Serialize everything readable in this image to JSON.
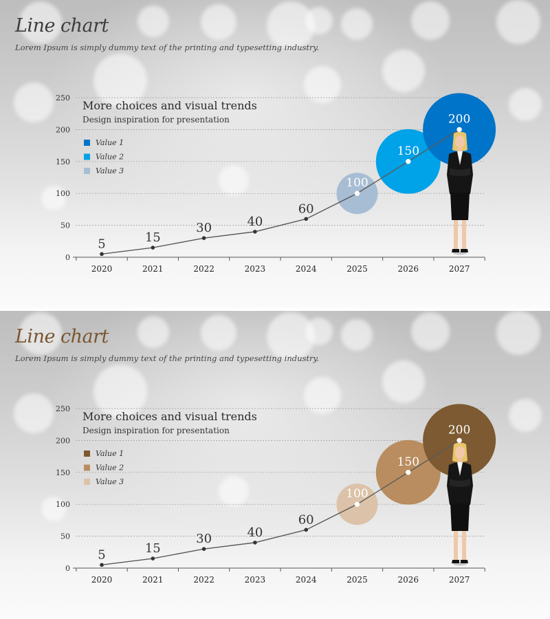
{
  "slides": [
    {
      "title": "Line chart",
      "subtitle": "Lorem Ipsum is simply dummy text of the printing and typesetting industry.",
      "colors": {
        "title": "#3d3d3d",
        "bubbles": [
          "#a7bdd3",
          "#00a2e8",
          "#0074c8"
        ],
        "legend": [
          "#0074c8",
          "#00a2e8",
          "#a7bdd3"
        ]
      },
      "chart_data": {
        "type": "line",
        "categories": [
          "2020",
          "2021",
          "2022",
          "2023",
          "2024",
          "2025",
          "2026",
          "2027"
        ],
        "values": [
          5,
          15,
          30,
          40,
          60,
          100,
          150,
          200
        ],
        "data_labels": [
          "5",
          "15",
          "30",
          "40",
          "60",
          "100",
          "150",
          "200"
        ],
        "highlighted_points": [
          5,
          6,
          7
        ],
        "yticks": [
          "0",
          "50",
          "100",
          "150",
          "200",
          "250"
        ],
        "ylim": [
          0,
          250
        ],
        "heading": "More choices and visual trends",
        "subheading": "Design inspiration for presentation",
        "legend": [
          "Value 1",
          "Value 2",
          "Value 3"
        ],
        "grid": true
      }
    },
    {
      "title": "Line chart",
      "subtitle": "Lorem Ipsum is simply dummy text of the printing and typesetting industry.",
      "colors": {
        "title": "#7a5530",
        "bubbles": [
          "#dcc2a8",
          "#b98d5f",
          "#7d5a31"
        ],
        "legend": [
          "#7d5a31",
          "#b98d5f",
          "#dcc2a8"
        ]
      },
      "chart_data": {
        "type": "line",
        "categories": [
          "2020",
          "2021",
          "2022",
          "2023",
          "2024",
          "2025",
          "2026",
          "2027"
        ],
        "values": [
          5,
          15,
          30,
          40,
          60,
          100,
          150,
          200
        ],
        "data_labels": [
          "5",
          "15",
          "30",
          "40",
          "60",
          "100",
          "150",
          "200"
        ],
        "highlighted_points": [
          5,
          6,
          7
        ],
        "yticks": [
          "0",
          "50",
          "100",
          "150",
          "200",
          "250"
        ],
        "ylim": [
          0,
          250
        ],
        "heading": "More choices and visual trends",
        "subheading": "Design inspiration for presentation",
        "legend": [
          "Value 1",
          "Value 2",
          "Value 3"
        ],
        "grid": true
      }
    }
  ]
}
